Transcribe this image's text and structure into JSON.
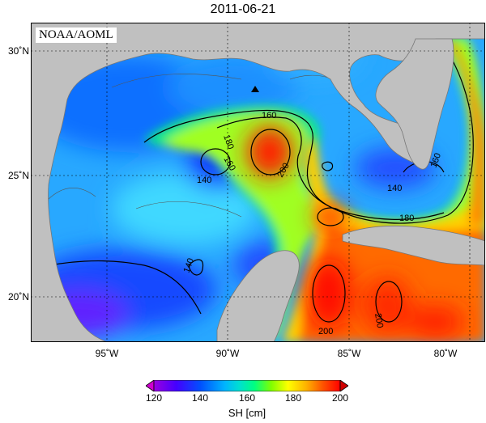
{
  "title": "2011-06-21",
  "source_label": "NOAA/AOML",
  "colorbar": {
    "label": "SH [cm]",
    "ticks": [
      "120",
      "140",
      "160",
      "180",
      "200"
    ],
    "colors": [
      "#9b00e0",
      "#4400ff",
      "#0050ff",
      "#00b4ff",
      "#00e0d0",
      "#00ff80",
      "#80ff00",
      "#ffff00",
      "#ffb000",
      "#ff5000",
      "#ff0000"
    ]
  },
  "axes": {
    "lat_ticks": [
      "30˚N",
      "25˚N",
      "20˚N"
    ],
    "lon_ticks": [
      "95˚W",
      "90˚W",
      "85˚W",
      "80˚W"
    ]
  },
  "contour_labels": [
    "160",
    "180",
    "160",
    "140",
    "200",
    "140",
    "180",
    "160",
    "140",
    "200",
    "200"
  ],
  "colors": {
    "land": "#c0c0c0",
    "background": "#ffffff"
  }
}
